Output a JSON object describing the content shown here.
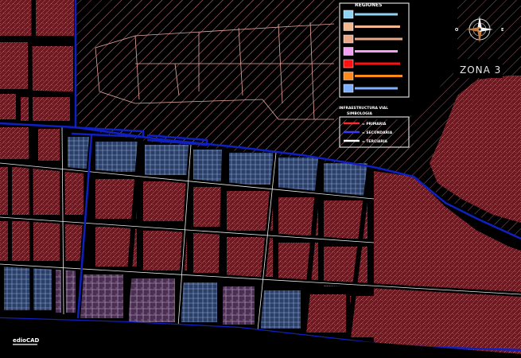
{
  "zone": {
    "label": "ZONA 3"
  },
  "legend_regions": {
    "title": "REGIONES",
    "swatches": [
      "#8fd3f4",
      "#f4b88f",
      "#e7a98a",
      "#f2a0f0",
      "#ff1010",
      "#ff8a1a",
      "#7fb0ff"
    ]
  },
  "legend_infra": {
    "title": "INFRAESTRUCTURA VIAL",
    "subtitle": "SIMBOLOGIA",
    "items": [
      {
        "color": "#ff2a2a",
        "label": "= PRIMARIA"
      },
      {
        "color": "#3a3aff",
        "label": "= SECUNDARIA"
      },
      {
        "color": "#ffffff",
        "label": "= TERCIARIA"
      }
    ]
  },
  "compass": {
    "west": "O",
    "east": "E",
    "north": "",
    "south": ""
  },
  "watermark": "edioCAD",
  "colors": {
    "block_red": "#7a1a22",
    "block_blue": "#3a5a8a",
    "road_blue": "#1020c0",
    "hatch": "#b8707a"
  }
}
